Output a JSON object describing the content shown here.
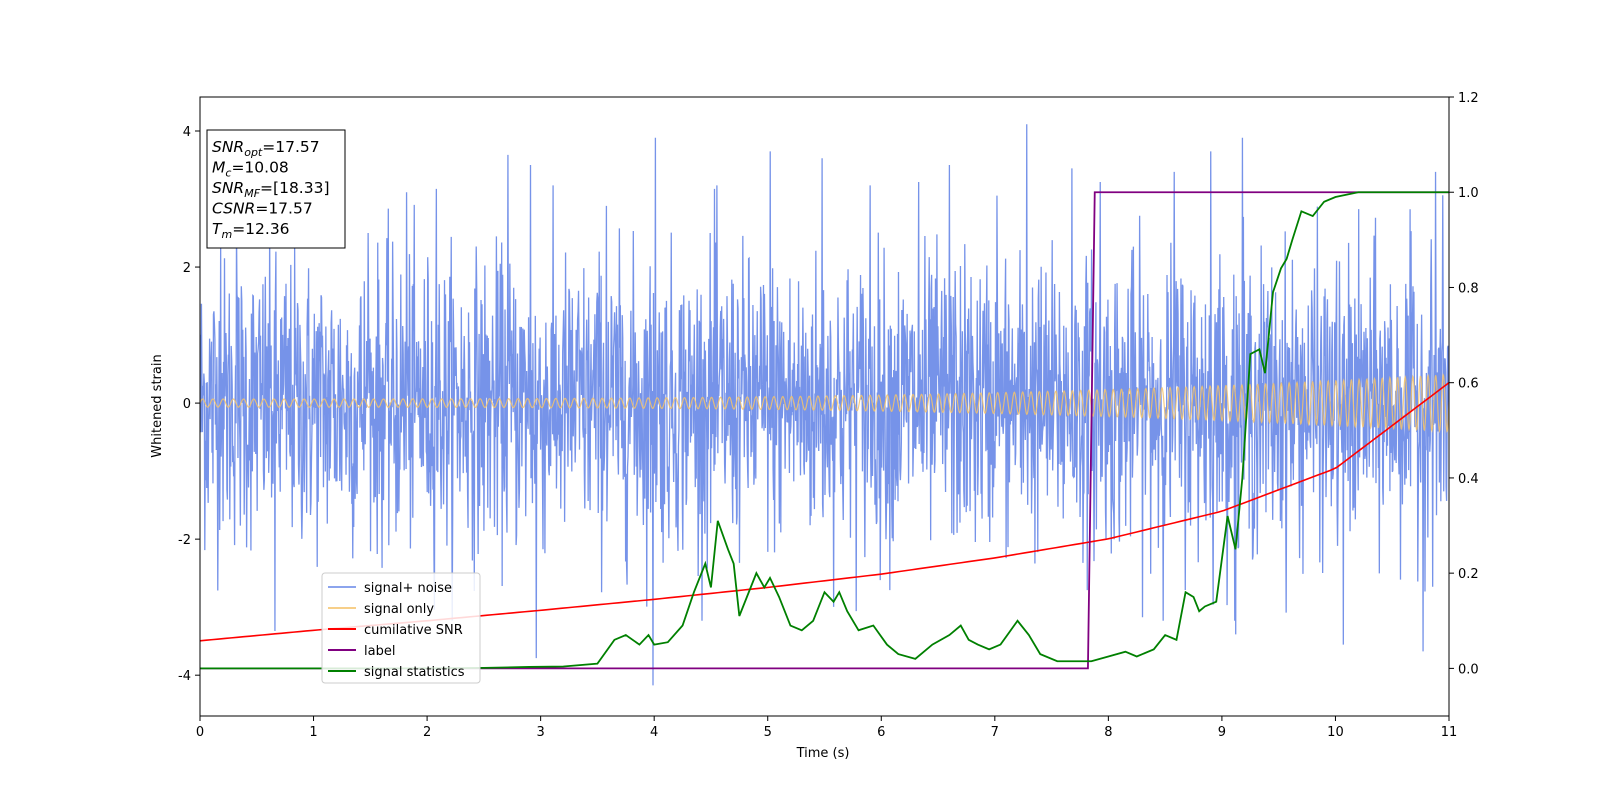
{
  "chart_data": {
    "type": "line",
    "xlabel": "Time (s)",
    "ylabel_left": "Whitened strain",
    "ylabel_right": "",
    "xlim": [
      0,
      11
    ],
    "ylim_left": [
      -4.6,
      4.5
    ],
    "ylim_right": [
      -0.1,
      1.2
    ],
    "x_ticks": [
      0,
      1,
      2,
      3,
      4,
      5,
      6,
      7,
      8,
      9,
      10,
      11
    ],
    "y_ticks_left": [
      -4,
      -2,
      0,
      2,
      4
    ],
    "y_ticks_right": [
      "0.0",
      "0.2",
      "0.4",
      "0.6",
      "0.8",
      "1.0",
      "1.2"
    ],
    "grid": false,
    "legend_position": "lower-left",
    "annotation": {
      "lines": [
        {
          "main": "SNR",
          "sub": "opt",
          "value": "=17.57"
        },
        {
          "main": "M",
          "sub": "c",
          "value": "=10.08"
        },
        {
          "main": "SNR",
          "sub": "MF",
          "value": "=[18.33]"
        },
        {
          "main": "CSNR",
          "sub": "",
          "value": "=17.57"
        },
        {
          "main": "T",
          "sub": "m",
          "value": "=12.36"
        }
      ]
    },
    "series": [
      {
        "name": "signal+ noise",
        "axis": "left",
        "color": "#6f8de8",
        "description_kind": "noise",
        "std": 1.05,
        "peak_points": [
          {
            "x": 0.18,
            "y": 2.3
          },
          {
            "x": 0.32,
            "y": 2.55
          },
          {
            "x": 0.66,
            "y": -3.35
          },
          {
            "x": 1.48,
            "y": 2.5
          },
          {
            "x": 1.82,
            "y": 3.1
          },
          {
            "x": 2.08,
            "y": 3.15
          },
          {
            "x": 2.71,
            "y": 3.65
          },
          {
            "x": 2.91,
            "y": 3.5
          },
          {
            "x": 2.96,
            "y": -3.75
          },
          {
            "x": 3.58,
            "y": 2.9
          },
          {
            "x": 4.01,
            "y": 3.9
          },
          {
            "x": 3.99,
            "y": -4.15
          },
          {
            "x": 4.53,
            "y": 3.15
          },
          {
            "x": 5.02,
            "y": 3.7
          },
          {
            "x": 5.48,
            "y": 3.6
          },
          {
            "x": 5.9,
            "y": 3.2
          },
          {
            "x": 6.33,
            "y": 3.25
          },
          {
            "x": 6.6,
            "y": 3.5
          },
          {
            "x": 7.02,
            "y": 3.05
          },
          {
            "x": 7.28,
            "y": 4.1
          },
          {
            "x": 7.68,
            "y": 3.45
          },
          {
            "x": 7.93,
            "y": 3.25
          },
          {
            "x": 8.58,
            "y": 3.4
          },
          {
            "x": 8.9,
            "y": 3.7
          },
          {
            "x": 9.18,
            "y": 3.9
          },
          {
            "x": 9.12,
            "y": -3.4
          },
          {
            "x": 10.07,
            "y": -3.55
          },
          {
            "x": 10.77,
            "y": -3.65
          },
          {
            "x": 10.88,
            "y": 3.4
          }
        ]
      },
      {
        "name": "signal only",
        "axis": "left",
        "color": "#f5c36b",
        "amplitude_start": 0.06,
        "amplitude_end": 0.42,
        "cycles_per_second_start": 11,
        "cycles_per_second_end": 15
      },
      {
        "name": "cumilative SNR",
        "axis": "right",
        "color": "#ff0000",
        "x": [
          0,
          1,
          2,
          3,
          4,
          5,
          6,
          7,
          8,
          9,
          10,
          11
        ],
        "y": [
          0.058,
          0.08,
          0.1,
          0.122,
          0.145,
          0.17,
          0.198,
          0.232,
          0.272,
          0.33,
          0.42,
          0.6
        ]
      },
      {
        "name": "label",
        "axis": "right",
        "color": "#800080",
        "x": [
          0,
          7.82,
          7.88,
          11
        ],
        "y": [
          0.0,
          0.0,
          1.0,
          1.0
        ]
      },
      {
        "name": "signal statistics",
        "axis": "right",
        "color": "#008000",
        "x": [
          0,
          0.5,
          1.0,
          1.5,
          2.0,
          2.5,
          2.9,
          3.2,
          3.5,
          3.65,
          3.75,
          3.87,
          3.95,
          4.0,
          4.12,
          4.25,
          4.35,
          4.45,
          4.5,
          4.56,
          4.65,
          4.7,
          4.75,
          4.9,
          4.97,
          5.02,
          5.1,
          5.2,
          5.3,
          5.4,
          5.5,
          5.58,
          5.63,
          5.7,
          5.8,
          5.93,
          6.05,
          6.15,
          6.3,
          6.45,
          6.6,
          6.7,
          6.77,
          6.85,
          6.95,
          7.05,
          7.2,
          7.3,
          7.4,
          7.55,
          7.7,
          7.85,
          8.0,
          8.15,
          8.25,
          8.4,
          8.5,
          8.6,
          8.68,
          8.75,
          8.8,
          8.85,
          8.95,
          9.05,
          9.12,
          9.18,
          9.25,
          9.33,
          9.38,
          9.45,
          9.52,
          9.57,
          9.62,
          9.7,
          9.8,
          9.9,
          10.0,
          10.2,
          10.5,
          10.8,
          11.0
        ],
        "y": [
          0.0,
          0.0,
          0.0,
          0.0,
          0.0,
          0.001,
          0.003,
          0.004,
          0.01,
          0.06,
          0.07,
          0.05,
          0.07,
          0.05,
          0.055,
          0.09,
          0.16,
          0.22,
          0.17,
          0.31,
          0.25,
          0.22,
          0.11,
          0.2,
          0.17,
          0.19,
          0.15,
          0.09,
          0.08,
          0.1,
          0.16,
          0.14,
          0.16,
          0.12,
          0.08,
          0.09,
          0.05,
          0.03,
          0.02,
          0.05,
          0.07,
          0.09,
          0.06,
          0.05,
          0.04,
          0.05,
          0.1,
          0.07,
          0.03,
          0.015,
          0.015,
          0.015,
          0.025,
          0.035,
          0.025,
          0.04,
          0.07,
          0.06,
          0.16,
          0.15,
          0.12,
          0.13,
          0.14,
          0.32,
          0.25,
          0.4,
          0.66,
          0.67,
          0.62,
          0.79,
          0.84,
          0.86,
          0.9,
          0.96,
          0.95,
          0.98,
          0.99,
          1.0,
          1.0,
          1.0,
          1.0
        ]
      }
    ]
  }
}
